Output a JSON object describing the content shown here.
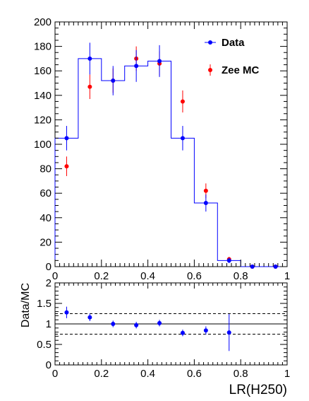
{
  "chart_data": [
    {
      "type": "scatter",
      "xlim": [
        0,
        1
      ],
      "ylim": [
        0,
        200
      ],
      "grid": false,
      "legend_placement": "top-right",
      "x_ticks": [
        "0",
        "0.2",
        "0.4",
        "0.6",
        "0.8",
        "1"
      ],
      "y_ticks": [
        "0",
        "20",
        "40",
        "60",
        "80",
        "100",
        "120",
        "140",
        "160",
        "180",
        "200"
      ],
      "bin_edges": [
        0.0,
        0.1,
        0.2,
        0.3,
        0.4,
        0.5,
        0.6,
        0.7,
        0.8,
        0.9,
        1.0
      ],
      "histogram_values": [
        105,
        170,
        152,
        164,
        168,
        105,
        52,
        5,
        0,
        0
      ],
      "series": [
        {
          "name": "Data",
          "color": "#0000ff",
          "x": [
            0.05,
            0.15,
            0.25,
            0.35,
            0.45,
            0.55,
            0.65,
            0.75,
            0.85,
            0.95
          ],
          "y": [
            105,
            170,
            152,
            164,
            168,
            105,
            52,
            5,
            0,
            0
          ],
          "err": [
            10,
            13,
            12,
            13,
            13,
            10,
            7,
            2.2,
            0,
            0
          ]
        },
        {
          "name": "Zee MC",
          "color": "#ff0000",
          "x": [
            0.05,
            0.15,
            0.25,
            0.35,
            0.45,
            0.55,
            0.65,
            0.75,
            0.85,
            0.95
          ],
          "y": [
            82,
            147,
            152,
            170,
            166,
            135,
            62,
            6,
            0,
            0
          ],
          "err": [
            8,
            10,
            10,
            10,
            10,
            9,
            6,
            2,
            0,
            0
          ]
        }
      ]
    },
    {
      "type": "scatter",
      "ylabel": "Data/MC",
      "xlabel": "LR(H250)",
      "xlim": [
        0,
        1
      ],
      "ylim": [
        0,
        2
      ],
      "grid": false,
      "x_ticks": [
        "0",
        "0.2",
        "0.4",
        "0.6",
        "0.8",
        "1"
      ],
      "y_ticks": [
        "0",
        "0.5",
        "1",
        "1.5",
        "2"
      ],
      "reference_lines": [
        1.0,
        1.25,
        0.75
      ],
      "series": [
        {
          "color": "#0000ff",
          "x": [
            0.05,
            0.15,
            0.25,
            0.35,
            0.45,
            0.55,
            0.65,
            0.75
          ],
          "y": [
            1.28,
            1.16,
            1.0,
            0.97,
            1.02,
            0.78,
            0.84,
            0.79
          ],
          "err": [
            0.14,
            0.09,
            0.08,
            0.08,
            0.08,
            0.08,
            0.1,
            0.45
          ]
        }
      ]
    }
  ]
}
